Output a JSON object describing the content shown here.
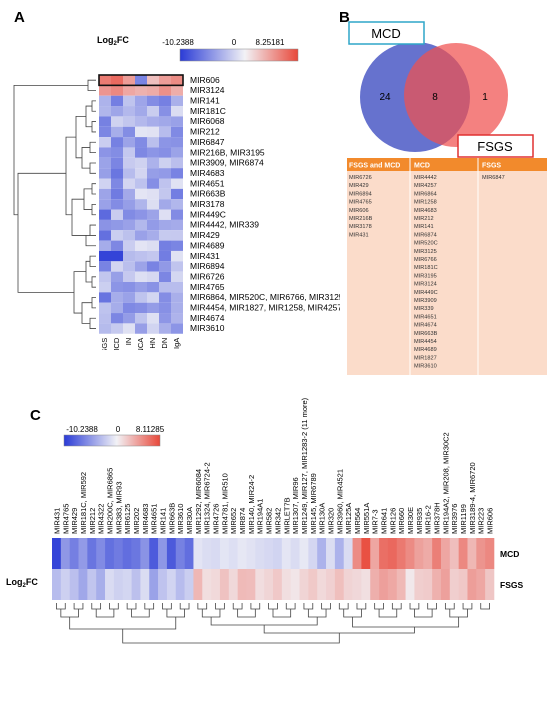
{
  "panels": {
    "a": "A",
    "b": "B",
    "c": "C"
  },
  "heatmap_a": {
    "title": "Log",
    "title_sub": "2",
    "title_end": "FC",
    "scale_min": "-10.2388",
    "scale_mid": "0",
    "scale_max": "8.25181",
    "columns": [
      "FSGS",
      "MCD",
      "IN",
      "ANCA",
      "HN",
      "DN",
      "IgA"
    ],
    "rows": [
      "MIR606",
      "MIR3124",
      "MIR141",
      "MIR181C",
      "MIR6068",
      "MIR212",
      "MIR6847",
      "MIR216B, MIR3195",
      "MIR3909, MIR6874",
      "MIR4683",
      "MIR4651",
      "MIR663B",
      "MIR3178",
      "MIR449C",
      "MIR4442, MIR339",
      "MIR429",
      "MIR4689",
      "MIR431",
      "MIR6894",
      "MIR6726",
      "MIR4765",
      "MIR6864, MIR520C, MIR6766, MIR3125",
      "MIR4454, MIR1827, MIR1258, MIR4257",
      "MIR4674",
      "MIR3610"
    ]
  },
  "venn": {
    "label_left": "MCD",
    "label_right": "FSGS",
    "count_left": "24",
    "count_overlap": "8",
    "count_right": "1"
  },
  "venn_table": {
    "headers": [
      "FSGS and MCD",
      "MCD",
      "FSGS"
    ],
    "col_both": [
      "MIR6726",
      "MIR429",
      "MIR6894",
      "MIR4765",
      "MIR606",
      "MIR216B",
      "MIR3178",
      "MIR431"
    ],
    "col_mcd": [
      "MIR4442",
      "MIR4257",
      "MIR6864",
      "MIR1258",
      "MIR4683",
      "MIR212",
      "MIR141",
      "MIR6874",
      "MIR520C",
      "MIR3125",
      "MIR6766",
      "MIR181C",
      "MIR3195",
      "MIR3124",
      "MIR449C",
      "MIR3909",
      "MIR339",
      "MIR4651",
      "MIR4674",
      "MIR663B",
      "MIR4454",
      "MIR4689",
      "MIR1827",
      "MIR3610"
    ],
    "col_fsgs": [
      "MIR6847"
    ]
  },
  "heatmap_c": {
    "scale_min": "-10.2388",
    "scale_mid": "0",
    "scale_max": "8.11285",
    "ylabel": "Log",
    "ylabel_sub": "2",
    "ylabel_end": "FC",
    "row_labels": [
      "MCD",
      "FSGS"
    ],
    "columns": [
      "MIR431",
      "MIR4765",
      "MIR429",
      "MIR181C, MIR592",
      "MIR212",
      "MIR4322",
      "MIR200C, MIR6865",
      "MIR383, MIR93",
      "MIR6125",
      "MIR202",
      "MIR4683",
      "MIR4651",
      "MIR141",
      "MIR663B",
      "MIR3610",
      "MIR30A",
      "MIR1292, MIR6084",
      "MIR1324, MIR6724-2",
      "MIR4726",
      "MIR4781, MIR510",
      "MIR652",
      "MIR874",
      "MIR140, MIR24-2",
      "MIR194A1",
      "MIR582",
      "MIR342",
      "MIRLET7B",
      "MIR1307, MIR96",
      "MIR1249, MIR127, MIR1283-2 (11 more)",
      "MIR145, MIR6789",
      "MIR130A",
      "MIR320",
      "MIR3960, MIR4521",
      "MIR125A",
      "MIR564",
      "MIR551A",
      "MIR7-3",
      "MIR641",
      "MIR126",
      "MIR660",
      "MIR30E",
      "MIR935",
      "MIR16-2",
      "MIR378H",
      "MIR194A2, MIR208, MIR30C2",
      "MIR3976",
      "MIR1199",
      "MIR3189-4, MIR6720",
      "MIR223",
      "MIR606"
    ]
  }
}
